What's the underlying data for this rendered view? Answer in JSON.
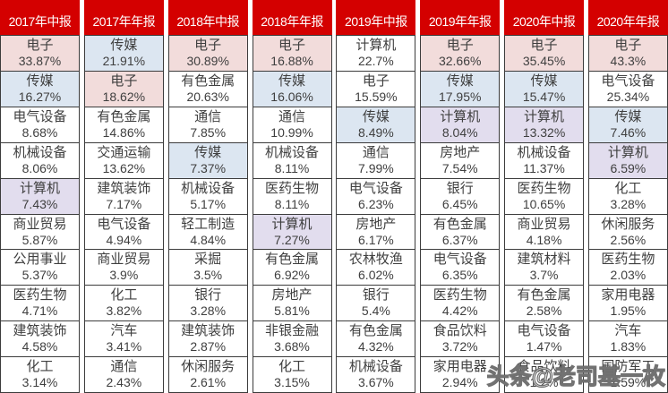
{
  "chart_data": {
    "type": "table",
    "columns": [
      {
        "period": "2017年中报",
        "rows": [
          {
            "sector": "电子",
            "weight": "33.87%",
            "highlight": "pink"
          },
          {
            "sector": "传媒",
            "weight": "16.27%",
            "highlight": "blue"
          },
          {
            "sector": "电气设备",
            "weight": "8.68%",
            "highlight": null
          },
          {
            "sector": "机械设备",
            "weight": "8.06%",
            "highlight": null
          },
          {
            "sector": "计算机",
            "weight": "7.43%",
            "highlight": "purple"
          },
          {
            "sector": "商业贸易",
            "weight": "5.87%",
            "highlight": null
          },
          {
            "sector": "公用事业",
            "weight": "5.37%",
            "highlight": null
          },
          {
            "sector": "医药生物",
            "weight": "4.71%",
            "highlight": null
          },
          {
            "sector": "建筑装饰",
            "weight": "4.58%",
            "highlight": null
          },
          {
            "sector": "化工",
            "weight": "3.14%",
            "highlight": null
          }
        ]
      },
      {
        "period": "2017年年报",
        "rows": [
          {
            "sector": "传媒",
            "weight": "21.91%",
            "highlight": "blue"
          },
          {
            "sector": "电子",
            "weight": "18.62%",
            "highlight": "pink"
          },
          {
            "sector": "有色金属",
            "weight": "14.86%",
            "highlight": null
          },
          {
            "sector": "交通运输",
            "weight": "13.62%",
            "highlight": null
          },
          {
            "sector": "建筑装饰",
            "weight": "7.17%",
            "highlight": null
          },
          {
            "sector": "电气设备",
            "weight": "4.94%",
            "highlight": null
          },
          {
            "sector": "商业贸易",
            "weight": "3.9%",
            "highlight": null
          },
          {
            "sector": "化工",
            "weight": "3.82%",
            "highlight": null
          },
          {
            "sector": "汽车",
            "weight": "3.41%",
            "highlight": null
          },
          {
            "sector": "通信",
            "weight": "2.43%",
            "highlight": null
          }
        ]
      },
      {
        "period": "2018年中报",
        "rows": [
          {
            "sector": "电子",
            "weight": "30.89%",
            "highlight": "pink"
          },
          {
            "sector": "有色金属",
            "weight": "20.63%",
            "highlight": null
          },
          {
            "sector": "通信",
            "weight": "7.85%",
            "highlight": null
          },
          {
            "sector": "传媒",
            "weight": "7.37%",
            "highlight": "blue"
          },
          {
            "sector": "机械设备",
            "weight": "5.17%",
            "highlight": null
          },
          {
            "sector": "轻工制造",
            "weight": "4.84%",
            "highlight": null
          },
          {
            "sector": "采掘",
            "weight": "3.5%",
            "highlight": null
          },
          {
            "sector": "银行",
            "weight": "3.28%",
            "highlight": null
          },
          {
            "sector": "建筑装饰",
            "weight": "2.87%",
            "highlight": null
          },
          {
            "sector": "休闲服务",
            "weight": "2.61%",
            "highlight": null
          }
        ]
      },
      {
        "period": "2018年年报",
        "rows": [
          {
            "sector": "电子",
            "weight": "16.88%",
            "highlight": "pink"
          },
          {
            "sector": "传媒",
            "weight": "16.06%",
            "highlight": "blue"
          },
          {
            "sector": "通信",
            "weight": "10.99%",
            "highlight": null
          },
          {
            "sector": "机械设备",
            "weight": "8.11%",
            "highlight": null
          },
          {
            "sector": "医药生物",
            "weight": "8.11%",
            "highlight": null
          },
          {
            "sector": "计算机",
            "weight": "7.27%",
            "highlight": "purple"
          },
          {
            "sector": "有色金属",
            "weight": "6.92%",
            "highlight": null
          },
          {
            "sector": "房地产",
            "weight": "5.81%",
            "highlight": null
          },
          {
            "sector": "非银金融",
            "weight": "3.68%",
            "highlight": null
          },
          {
            "sector": "化工",
            "weight": "3.15%",
            "highlight": null
          }
        ]
      },
      {
        "period": "2019年中报",
        "rows": [
          {
            "sector": "计算机",
            "weight": "22.7%",
            "highlight": null
          },
          {
            "sector": "电子",
            "weight": "15.59%",
            "highlight": null
          },
          {
            "sector": "传媒",
            "weight": "8.49%",
            "highlight": "blue"
          },
          {
            "sector": "通信",
            "weight": "7.99%",
            "highlight": null
          },
          {
            "sector": "电气设备",
            "weight": "6.23%",
            "highlight": null
          },
          {
            "sector": "房地产",
            "weight": "6.17%",
            "highlight": null
          },
          {
            "sector": "农林牧渔",
            "weight": "6.02%",
            "highlight": null
          },
          {
            "sector": "银行",
            "weight": "5.4%",
            "highlight": null
          },
          {
            "sector": "有色金属",
            "weight": "4.32%",
            "highlight": null
          },
          {
            "sector": "机械设备",
            "weight": "3.67%",
            "highlight": null
          }
        ]
      },
      {
        "period": "2019年年报",
        "rows": [
          {
            "sector": "电子",
            "weight": "32.66%",
            "highlight": "pink"
          },
          {
            "sector": "传媒",
            "weight": "17.95%",
            "highlight": "blue"
          },
          {
            "sector": "计算机",
            "weight": "8.04%",
            "highlight": "purple"
          },
          {
            "sector": "房地产",
            "weight": "7.54%",
            "highlight": null
          },
          {
            "sector": "银行",
            "weight": "6.45%",
            "highlight": null
          },
          {
            "sector": "有色金属",
            "weight": "6.37%",
            "highlight": null
          },
          {
            "sector": "电气设备",
            "weight": "6.35%",
            "highlight": null
          },
          {
            "sector": "医药生物",
            "weight": "4.42%",
            "highlight": null
          },
          {
            "sector": "食品饮料",
            "weight": "3.72%",
            "highlight": null
          },
          {
            "sector": "家用电器",
            "weight": "2.94%",
            "highlight": null
          }
        ]
      },
      {
        "period": "2020年中报",
        "rows": [
          {
            "sector": "电子",
            "weight": "35.45%",
            "highlight": "pink"
          },
          {
            "sector": "传媒",
            "weight": "15.47%",
            "highlight": "blue"
          },
          {
            "sector": "计算机",
            "weight": "13.32%",
            "highlight": "purple"
          },
          {
            "sector": "机械设备",
            "weight": "11.37%",
            "highlight": null
          },
          {
            "sector": "医药生物",
            "weight": "10.65%",
            "highlight": null
          },
          {
            "sector": "商业贸易",
            "weight": "4.18%",
            "highlight": null
          },
          {
            "sector": "建筑材料",
            "weight": "3.7%",
            "highlight": null
          },
          {
            "sector": "有色金属",
            "weight": "2.58%",
            "highlight": null
          },
          {
            "sector": "电气设备",
            "weight": "1.47%",
            "highlight": null
          },
          {
            "sector": "食品饮料",
            "weight": "1.2%",
            "highlight": null
          }
        ]
      },
      {
        "period": "2020年年报",
        "rows": [
          {
            "sector": "电子",
            "weight": "43.3%",
            "highlight": "pink"
          },
          {
            "sector": "电气设备",
            "weight": "25.34%",
            "highlight": null
          },
          {
            "sector": "传媒",
            "weight": "7.46%",
            "highlight": "blue"
          },
          {
            "sector": "计算机",
            "weight": "6.59%",
            "highlight": "purple"
          },
          {
            "sector": "化工",
            "weight": "3.28%",
            "highlight": null
          },
          {
            "sector": "休闲服务",
            "weight": "2.56%",
            "highlight": null
          },
          {
            "sector": "医药生物",
            "weight": "2.03%",
            "highlight": null
          },
          {
            "sector": "家用电器",
            "weight": "1.95%",
            "highlight": null
          },
          {
            "sector": "汽车",
            "weight": "1.83%",
            "highlight": null
          },
          {
            "sector": "国防军工",
            "weight": "1.59%",
            "highlight": null
          }
        ]
      }
    ]
  },
  "watermark": {
    "text": "头条@老司基一枚"
  },
  "colors": {
    "header_bg": "#d40000",
    "header_text": "#ffffff",
    "highlight_pink": "#f2dcdb",
    "highlight_blue": "#dce6f1",
    "highlight_purple": "#e2ddee",
    "cell_text": "#3f3f3f",
    "border": "#3c3c3c"
  }
}
